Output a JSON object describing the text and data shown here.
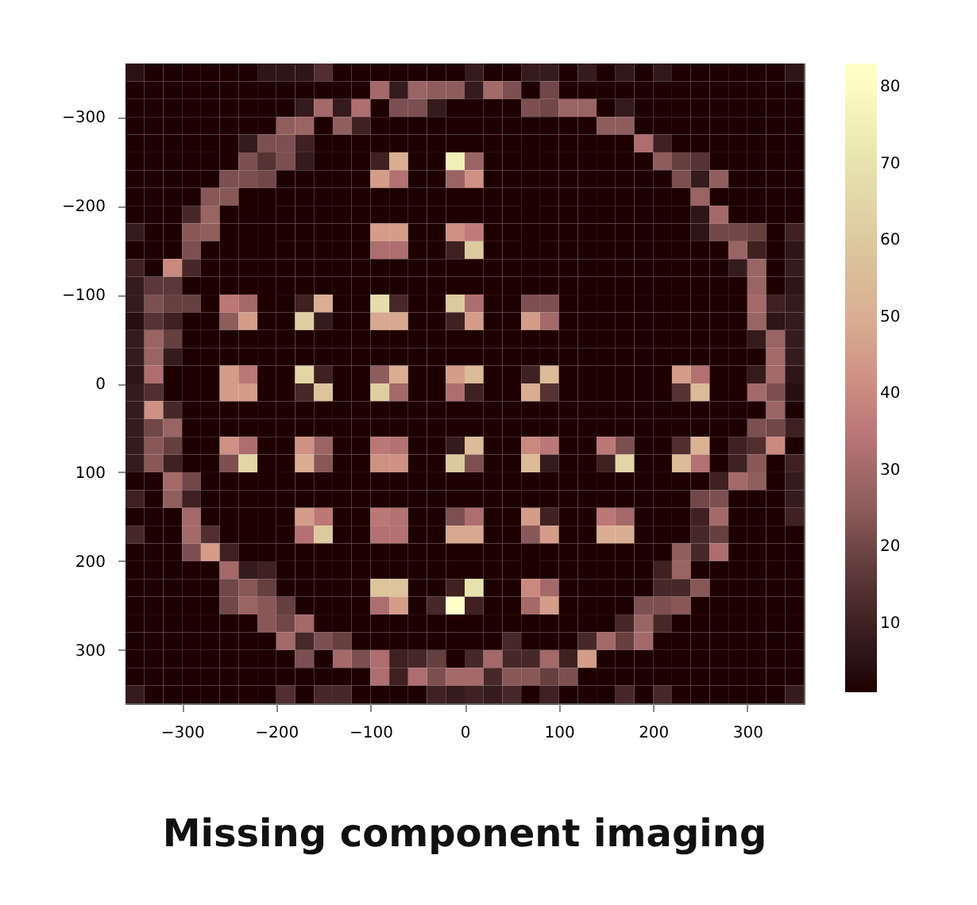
{
  "chart_data": {
    "type": "heatmap",
    "title": "Missing component imaging",
    "x": [
      -350,
      -330,
      -310,
      -290,
      -270,
      -250,
      -230,
      -210,
      -190,
      -170,
      -150,
      -130,
      -110,
      -90,
      -70,
      -50,
      -30,
      -10,
      10,
      30,
      50,
      70,
      90,
      110,
      130,
      150,
      170,
      190,
      210,
      230,
      250,
      270,
      290,
      310,
      330,
      350
    ],
    "y": [
      -350,
      -330,
      -310,
      -290,
      -270,
      -250,
      -230,
      -210,
      -190,
      -170,
      -150,
      -130,
      -110,
      -90,
      -70,
      -50,
      -30,
      -10,
      10,
      30,
      50,
      70,
      90,
      110,
      130,
      150,
      170,
      190,
      210,
      230,
      250,
      270,
      290,
      310,
      330,
      350
    ],
    "xlim": [
      -360,
      360
    ],
    "ylim": [
      360,
      -360
    ],
    "xticks": [
      -300,
      -200,
      -100,
      0,
      100,
      200,
      300
    ],
    "yticks": [
      -300,
      -200,
      -100,
      0,
      100,
      200,
      300
    ],
    "clim": [
      1,
      83
    ],
    "cticks": [
      10,
      20,
      30,
      40,
      50,
      60,
      70,
      80
    ],
    "grid": false,
    "cells": [
      [
        5,
        1,
        1,
        1,
        1,
        1,
        1,
        6,
        6,
        6,
        14,
        1,
        1,
        1,
        1,
        1,
        1,
        1,
        8,
        1,
        1,
        8,
        8,
        1,
        8,
        1,
        7,
        1,
        7,
        1,
        1,
        1,
        1,
        1,
        1,
        6
      ],
      [
        1,
        1,
        1,
        1,
        1,
        1,
        1,
        1,
        1,
        1,
        1,
        1,
        1,
        30,
        8,
        28,
        25,
        25,
        8,
        30,
        22,
        1,
        20,
        1,
        1,
        1,
        1,
        1,
        1,
        1,
        1,
        1,
        1,
        1,
        1,
        1
      ],
      [
        1,
        1,
        1,
        1,
        1,
        1,
        1,
        1,
        1,
        8,
        30,
        8,
        32,
        1,
        22,
        22,
        8,
        1,
        1,
        1,
        1,
        22,
        20,
        28,
        28,
        1,
        8,
        1,
        1,
        1,
        1,
        1,
        1,
        1,
        1,
        1
      ],
      [
        1,
        1,
        1,
        1,
        1,
        1,
        1,
        1,
        26,
        28,
        1,
        26,
        10,
        1,
        1,
        1,
        1,
        1,
        1,
        1,
        1,
        1,
        1,
        1,
        1,
        25,
        25,
        1,
        1,
        1,
        1,
        1,
        1,
        1,
        1,
        1
      ],
      [
        1,
        1,
        1,
        1,
        1,
        1,
        8,
        22,
        22,
        10,
        1,
        1,
        1,
        1,
        1,
        1,
        1,
        1,
        1,
        1,
        1,
        1,
        1,
        1,
        1,
        1,
        1,
        32,
        10,
        1,
        1,
        1,
        1,
        1,
        1,
        1
      ],
      [
        1,
        1,
        1,
        1,
        1,
        1,
        22,
        15,
        22,
        8,
        1,
        1,
        1,
        10,
        50,
        1,
        1,
        75,
        28,
        1,
        1,
        1,
        1,
        1,
        1,
        1,
        1,
        1,
        25,
        18,
        15,
        1,
        1,
        1,
        1,
        1
      ],
      [
        1,
        1,
        1,
        1,
        1,
        22,
        22,
        20,
        1,
        1,
        1,
        1,
        1,
        45,
        33,
        1,
        1,
        28,
        42,
        1,
        1,
        1,
        1,
        1,
        1,
        1,
        1,
        1,
        1,
        22,
        8,
        26,
        1,
        1,
        1,
        1
      ],
      [
        1,
        1,
        1,
        1,
        24,
        24,
        1,
        1,
        1,
        1,
        1,
        1,
        1,
        1,
        1,
        1,
        1,
        1,
        1,
        1,
        1,
        1,
        1,
        1,
        1,
        1,
        1,
        1,
        1,
        1,
        28,
        1,
        1,
        1,
        1,
        1
      ],
      [
        1,
        1,
        1,
        12,
        28,
        1,
        1,
        1,
        1,
        1,
        1,
        1,
        1,
        1,
        1,
        1,
        1,
        1,
        1,
        1,
        1,
        1,
        1,
        1,
        1,
        1,
        1,
        1,
        1,
        1,
        6,
        30,
        1,
        1,
        1,
        1
      ],
      [
        8,
        1,
        1,
        24,
        26,
        1,
        1,
        1,
        1,
        1,
        1,
        1,
        1,
        45,
        45,
        1,
        1,
        42,
        36,
        1,
        1,
        1,
        1,
        1,
        1,
        1,
        1,
        1,
        1,
        1,
        6,
        20,
        20,
        18,
        1,
        10
      ],
      [
        1,
        1,
        1,
        22,
        1,
        1,
        1,
        1,
        1,
        1,
        1,
        1,
        1,
        32,
        32,
        1,
        1,
        10,
        60,
        1,
        1,
        1,
        1,
        1,
        1,
        1,
        1,
        1,
        1,
        1,
        1,
        1,
        28,
        10,
        1,
        6
      ],
      [
        10,
        1,
        40,
        12,
        1,
        1,
        1,
        1,
        1,
        1,
        1,
        1,
        1,
        1,
        1,
        1,
        1,
        1,
        1,
        1,
        1,
        1,
        1,
        1,
        1,
        1,
        1,
        1,
        1,
        1,
        1,
        1,
        8,
        28,
        1,
        8
      ],
      [
        8,
        16,
        16,
        1,
        1,
        1,
        1,
        1,
        1,
        1,
        1,
        1,
        1,
        1,
        1,
        1,
        1,
        1,
        1,
        1,
        1,
        1,
        1,
        1,
        1,
        1,
        1,
        1,
        1,
        1,
        1,
        1,
        1,
        28,
        1,
        6
      ],
      [
        8,
        22,
        18,
        18,
        1,
        35,
        30,
        1,
        1,
        10,
        50,
        1,
        1,
        68,
        12,
        1,
        1,
        60,
        32,
        1,
        1,
        22,
        22,
        1,
        1,
        1,
        1,
        1,
        1,
        1,
        1,
        1,
        1,
        30,
        10,
        8
      ],
      [
        4,
        15,
        10,
        1,
        1,
        25,
        45,
        1,
        1,
        62,
        8,
        1,
        1,
        48,
        48,
        1,
        1,
        10,
        45,
        1,
        1,
        45,
        30,
        1,
        1,
        1,
        1,
        1,
        1,
        1,
        1,
        1,
        1,
        28,
        6,
        8
      ],
      [
        8,
        28,
        18,
        1,
        1,
        1,
        1,
        1,
        1,
        1,
        1,
        1,
        1,
        1,
        1,
        1,
        1,
        1,
        1,
        1,
        1,
        1,
        1,
        1,
        1,
        1,
        1,
        1,
        1,
        1,
        1,
        1,
        1,
        8,
        28,
        8
      ],
      [
        8,
        28,
        8,
        1,
        1,
        1,
        1,
        1,
        1,
        1,
        1,
        1,
        1,
        1,
        1,
        1,
        1,
        1,
        1,
        1,
        1,
        1,
        1,
        1,
        1,
        1,
        1,
        1,
        1,
        1,
        1,
        1,
        1,
        1,
        30,
        8
      ],
      [
        6,
        32,
        1,
        1,
        1,
        45,
        35,
        1,
        1,
        65,
        10,
        1,
        1,
        25,
        50,
        1,
        1,
        45,
        55,
        1,
        1,
        10,
        55,
        1,
        1,
        1,
        1,
        1,
        1,
        45,
        33,
        1,
        1,
        8,
        30,
        6
      ],
      [
        8,
        14,
        1,
        1,
        1,
        45,
        45,
        1,
        1,
        12,
        58,
        1,
        1,
        62,
        30,
        1,
        1,
        32,
        10,
        1,
        1,
        50,
        15,
        1,
        1,
        1,
        1,
        1,
        1,
        15,
        55,
        1,
        1,
        30,
        22,
        4
      ],
      [
        8,
        42,
        12,
        1,
        1,
        1,
        1,
        1,
        1,
        1,
        1,
        1,
        1,
        1,
        1,
        1,
        1,
        1,
        1,
        1,
        1,
        1,
        1,
        1,
        1,
        1,
        1,
        1,
        1,
        1,
        1,
        1,
        1,
        1,
        28,
        1
      ],
      [
        8,
        20,
        28,
        1,
        1,
        1,
        1,
        1,
        1,
        1,
        1,
        1,
        1,
        1,
        1,
        1,
        1,
        1,
        1,
        1,
        1,
        1,
        1,
        1,
        1,
        1,
        1,
        1,
        1,
        1,
        1,
        1,
        1,
        22,
        20,
        10
      ],
      [
        8,
        24,
        18,
        1,
        1,
        42,
        32,
        1,
        1,
        42,
        28,
        1,
        1,
        35,
        33,
        1,
        1,
        8,
        55,
        1,
        1,
        40,
        35,
        1,
        1,
        35,
        22,
        1,
        1,
        14,
        52,
        1,
        10,
        14,
        40,
        1
      ],
      [
        8,
        24,
        10,
        1,
        1,
        22,
        65,
        1,
        1,
        50,
        24,
        1,
        1,
        42,
        42,
        1,
        1,
        60,
        22,
        1,
        1,
        55,
        8,
        1,
        1,
        10,
        65,
        1,
        1,
        55,
        33,
        1,
        10,
        24,
        1,
        10
      ],
      [
        1,
        1,
        30,
        20,
        1,
        1,
        1,
        1,
        1,
        1,
        1,
        1,
        1,
        1,
        1,
        1,
        1,
        1,
        1,
        1,
        1,
        1,
        1,
        1,
        1,
        1,
        1,
        1,
        1,
        1,
        1,
        10,
        30,
        26,
        1,
        8
      ],
      [
        10,
        1,
        26,
        10,
        1,
        1,
        1,
        1,
        1,
        1,
        1,
        1,
        1,
        1,
        1,
        1,
        1,
        1,
        1,
        1,
        1,
        1,
        1,
        1,
        1,
        1,
        1,
        1,
        1,
        1,
        20,
        22,
        1,
        1,
        1,
        8
      ],
      [
        1,
        1,
        1,
        30,
        1,
        1,
        1,
        1,
        1,
        45,
        35,
        1,
        1,
        35,
        33,
        1,
        1,
        22,
        32,
        1,
        1,
        45,
        10,
        1,
        1,
        35,
        30,
        1,
        1,
        1,
        10,
        30,
        1,
        1,
        1,
        10
      ],
      [
        12,
        1,
        1,
        30,
        14,
        1,
        1,
        1,
        1,
        33,
        60,
        1,
        1,
        33,
        33,
        1,
        1,
        48,
        48,
        1,
        1,
        24,
        45,
        1,
        1,
        50,
        50,
        1,
        1,
        1,
        12,
        18,
        1,
        1,
        1,
        1
      ],
      [
        1,
        1,
        1,
        22,
        45,
        10,
        1,
        1,
        1,
        1,
        1,
        1,
        1,
        1,
        1,
        1,
        1,
        1,
        1,
        1,
        1,
        1,
        1,
        1,
        1,
        1,
        1,
        1,
        1,
        26,
        12,
        32,
        1,
        1,
        1,
        1
      ],
      [
        1,
        1,
        1,
        1,
        1,
        30,
        8,
        10,
        1,
        1,
        1,
        1,
        1,
        1,
        1,
        1,
        1,
        1,
        1,
        1,
        1,
        1,
        1,
        1,
        1,
        1,
        1,
        1,
        10,
        28,
        1,
        1,
        1,
        1,
        1,
        1
      ],
      [
        1,
        1,
        1,
        1,
        1,
        20,
        24,
        18,
        1,
        1,
        1,
        1,
        1,
        58,
        58,
        1,
        1,
        10,
        70,
        1,
        1,
        40,
        30,
        1,
        1,
        1,
        1,
        1,
        12,
        12,
        24,
        1,
        1,
        1,
        1,
        1
      ],
      [
        1,
        1,
        1,
        1,
        1,
        20,
        28,
        24,
        18,
        1,
        1,
        1,
        1,
        32,
        45,
        1,
        12,
        83,
        10,
        1,
        1,
        30,
        45,
        1,
        1,
        1,
        1,
        22,
        22,
        24,
        1,
        1,
        1,
        1,
        1,
        1
      ],
      [
        1,
        1,
        1,
        1,
        1,
        1,
        1,
        24,
        20,
        30,
        1,
        1,
        1,
        1,
        1,
        1,
        1,
        1,
        1,
        1,
        1,
        1,
        1,
        1,
        1,
        1,
        12,
        28,
        12,
        1,
        1,
        1,
        1,
        1,
        1,
        1
      ],
      [
        1,
        1,
        1,
        1,
        1,
        1,
        1,
        1,
        30,
        12,
        22,
        18,
        1,
        1,
        1,
        1,
        1,
        1,
        1,
        1,
        12,
        1,
        1,
        1,
        12,
        30,
        18,
        30,
        1,
        1,
        1,
        1,
        1,
        1,
        1,
        1
      ],
      [
        1,
        1,
        1,
        1,
        1,
        1,
        1,
        1,
        1,
        22,
        1,
        30,
        22,
        32,
        10,
        12,
        18,
        1,
        12,
        30,
        12,
        12,
        30,
        10,
        45,
        1,
        1,
        1,
        1,
        1,
        1,
        1,
        1,
        1,
        1,
        1
      ],
      [
        1,
        1,
        1,
        1,
        1,
        1,
        1,
        1,
        1,
        1,
        1,
        1,
        1,
        32,
        10,
        32,
        22,
        30,
        30,
        12,
        24,
        24,
        18,
        22,
        1,
        1,
        1,
        1,
        1,
        1,
        1,
        1,
        1,
        1,
        1,
        1
      ],
      [
        8,
        1,
        1,
        1,
        1,
        1,
        1,
        1,
        14,
        1,
        12,
        12,
        1,
        1,
        1,
        1,
        10,
        8,
        10,
        8,
        12,
        1,
        10,
        1,
        1,
        1,
        12,
        1,
        12,
        1,
        1,
        1,
        1,
        1,
        1,
        8
      ]
    ]
  }
}
